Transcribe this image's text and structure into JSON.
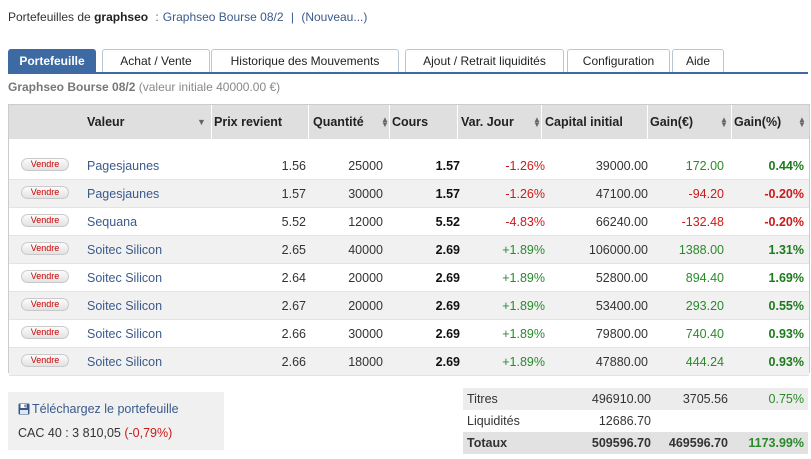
{
  "header": {
    "prefix": "Portefeuilles de",
    "user": "graphseo",
    "portfolio_link": "Graphseo Bourse 08/2",
    "separator": "|",
    "new_link": "(Nouveau...)"
  },
  "tabs": [
    "Portefeuille",
    "Achat / Vente",
    "Historique des Mouvements",
    "Ajout / Retrait liquidités",
    "Configuration",
    "Aide"
  ],
  "subtitle": {
    "name": "Graphseo Bourse 08/2",
    "initial": "(valeur initiale 40000.00 €)"
  },
  "table": {
    "columns": [
      "Valeur",
      "Prix revient",
      "Quantité",
      "Cours",
      "Var. Jour",
      "Capital initial",
      "Gain(€)",
      "Gain(%)"
    ],
    "sell_label": "Vendre",
    "rows": [
      {
        "valeur": "Pagesjaunes",
        "prix": "1.56",
        "qte": "25000",
        "cours": "1.57",
        "var": "-1.26%",
        "capital": "39000.00",
        "gain_eur": "172.00",
        "gain_pct": "0.44%"
      },
      {
        "valeur": "Pagesjaunes",
        "prix": "1.57",
        "qte": "30000",
        "cours": "1.57",
        "var": "-1.26%",
        "capital": "47100.00",
        "gain_eur": "-94.20",
        "gain_pct": "-0.20%"
      },
      {
        "valeur": "Sequana",
        "prix": "5.52",
        "qte": "12000",
        "cours": "5.52",
        "var": "-4.83%",
        "capital": "66240.00",
        "gain_eur": "-132.48",
        "gain_pct": "-0.20%"
      },
      {
        "valeur": "Soitec Silicon",
        "prix": "2.65",
        "qte": "40000",
        "cours": "2.69",
        "var": "+1.89%",
        "capital": "106000.00",
        "gain_eur": "1388.00",
        "gain_pct": "1.31%"
      },
      {
        "valeur": "Soitec Silicon",
        "prix": "2.64",
        "qte": "20000",
        "cours": "2.69",
        "var": "+1.89%",
        "capital": "52800.00",
        "gain_eur": "894.40",
        "gain_pct": "1.69%"
      },
      {
        "valeur": "Soitec Silicon",
        "prix": "2.67",
        "qte": "20000",
        "cours": "2.69",
        "var": "+1.89%",
        "capital": "53400.00",
        "gain_eur": "293.20",
        "gain_pct": "0.55%"
      },
      {
        "valeur": "Soitec Silicon",
        "prix": "2.66",
        "qte": "30000",
        "cours": "2.69",
        "var": "+1.89%",
        "capital": "79800.00",
        "gain_eur": "740.40",
        "gain_pct": "0.93%"
      },
      {
        "valeur": "Soitec Silicon",
        "prix": "2.66",
        "qte": "18000",
        "cours": "2.69",
        "var": "+1.89%",
        "capital": "47880.00",
        "gain_eur": "444.24",
        "gain_pct": "0.93%"
      }
    ]
  },
  "download": {
    "label": "Téléchargez le portefeuille",
    "icon": "floppy-disk-icon"
  },
  "cac": {
    "label": "CAC 40 : 3 810,05",
    "change": "(-0,79%)"
  },
  "totals": {
    "titres": {
      "label": "Titres",
      "v1": "496910.00",
      "v2": "3705.56",
      "v3": "0.75%"
    },
    "liquidites": {
      "label": "Liquidités",
      "v1": "12686.70"
    },
    "totaux": {
      "label": "Totaux",
      "v1": "509596.70",
      "v2": "469596.70",
      "v3": "1173.99%"
    }
  },
  "colors": {
    "accent": "#3d6aa2",
    "positive": "#2a8a2a",
    "negative": "#cc1a1a",
    "link": "#3a5a8c"
  }
}
